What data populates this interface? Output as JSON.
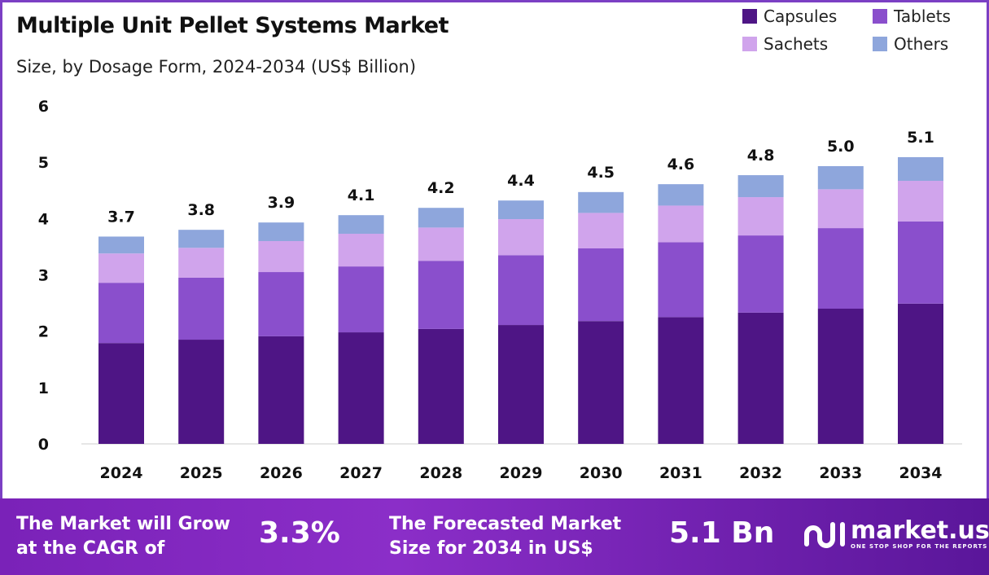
{
  "title": "Multiple Unit Pellet Systems Market",
  "subtitle": "Size, by Dosage Form, 2024-2034 (US$ Billion)",
  "chart_data": {
    "type": "bar",
    "stacked": true,
    "categories": [
      "2024",
      "2025",
      "2026",
      "2027",
      "2028",
      "2029",
      "2030",
      "2031",
      "2032",
      "2033",
      "2034"
    ],
    "series": [
      {
        "name": "Capsules",
        "color": "#4e1585",
        "values": [
          1.79,
          1.85,
          1.91,
          1.98,
          2.04,
          2.11,
          2.18,
          2.25,
          2.33,
          2.4,
          2.49
        ]
      },
      {
        "name": "Tablets",
        "color": "#8a4fcc",
        "values": [
          1.07,
          1.1,
          1.14,
          1.17,
          1.21,
          1.24,
          1.29,
          1.33,
          1.37,
          1.43,
          1.46
        ]
      },
      {
        "name": "Sachets",
        "color": "#d0a4ec",
        "values": [
          0.52,
          0.53,
          0.55,
          0.58,
          0.59,
          0.64,
          0.63,
          0.65,
          0.68,
          0.69,
          0.72
        ]
      },
      {
        "name": "Others",
        "color": "#8ea6dc",
        "values": [
          0.3,
          0.32,
          0.33,
          0.33,
          0.35,
          0.33,
          0.37,
          0.38,
          0.39,
          0.41,
          0.42
        ]
      }
    ],
    "totals": [
      "3.7",
      "3.8",
      "3.9",
      "4.1",
      "4.2",
      "4.4",
      "4.5",
      "4.6",
      "4.8",
      "5.0",
      "5.1"
    ],
    "yticks": [
      "0",
      "1",
      "2",
      "3",
      "4",
      "5",
      "6"
    ],
    "ylim": [
      0,
      6
    ],
    "grid": false,
    "legend": "top-right"
  },
  "footer": {
    "cagr_label_1": "The Market will Grow",
    "cagr_label_2": "at the CAGR of",
    "cagr_value": "3.3%",
    "forecast_label_1": "The Forecasted Market",
    "forecast_label_2": "Size for 2034 in US$",
    "forecast_value": "5.1 Bn"
  },
  "logo": {
    "name": "market.us",
    "tagline": "ONE STOP SHOP FOR THE REPORTS"
  }
}
